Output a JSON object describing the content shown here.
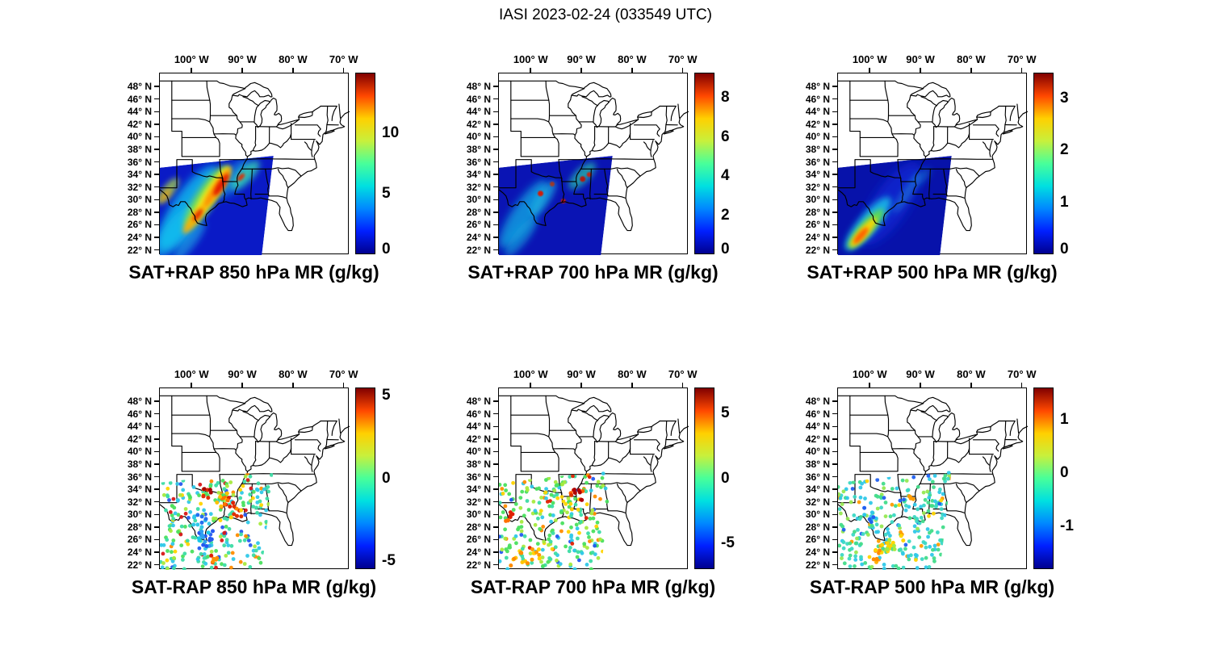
{
  "title": "IASI 2023-02-24 (033549 UTC)",
  "axes": {
    "lon_tick_labels": [
      "100° W",
      "90° W",
      "80° W",
      "70° W"
    ],
    "lat_tick_labels": [
      "48° N",
      "46° N",
      "44° N",
      "42° N",
      "40° N",
      "38° N",
      "36° N",
      "34° N",
      "32° N",
      "30° N",
      "28° N",
      "26° N",
      "24° N",
      "22° N"
    ]
  },
  "panels": [
    {
      "title": "SAT+RAP 850 hPa MR (g/kg)"
    },
    {
      "title": "SAT+RAP 700 hPa MR (g/kg)"
    },
    {
      "title": "SAT+RAP 500 hPa MR (g/kg)"
    },
    {
      "title": "SAT-RAP 850 hPa MR (g/kg)"
    },
    {
      "title": "SAT-RAP 700 hPa MR (g/kg)"
    },
    {
      "title": "SAT-RAP 500 hPa MR (g/kg)"
    }
  ],
  "chart_data": {
    "type": "heatmap",
    "layout": "2x3 grid of geographic map panels over the central/eastern United States",
    "suptitle": "IASI 2023-02-24 (033549 UTC)",
    "colormap": "jet",
    "colormap_stops": [
      "#00008f",
      "#0020ff",
      "#0088ff",
      "#00e0e0",
      "#48ff9a",
      "#c8f03c",
      "#ffd000",
      "#ff4800",
      "#800000"
    ],
    "map_extent": {
      "lon_west": -106.4,
      "lon_east": -69.0,
      "lat_south": 21.3,
      "lat_north": 50.2
    },
    "lon_ticks_deg_west": [
      100,
      90,
      80,
      70
    ],
    "lat_ticks_deg_north": [
      48,
      46,
      44,
      42,
      40,
      38,
      36,
      34,
      32,
      30,
      28,
      26,
      24,
      22
    ],
    "panels": [
      {
        "title": "SAT+RAP 850 hPa MR (g/kg)",
        "row": 0,
        "col": 0,
        "style": "filled-swath",
        "colorbar": {
          "ticks": [
            0,
            5,
            10
          ],
          "vmin": 0,
          "vmax": 15
        },
        "description": "Diagonal IASI swath over the southern US and Gulf coast; mostly 2-6 g/kg (blue-cyan) with an 8-12 g/kg (yellow-orange-red) band from south Texas through Louisiana/Mississippi."
      },
      {
        "title": "SAT+RAP 700 hPa MR (g/kg)",
        "row": 0,
        "col": 1,
        "style": "filled-swath",
        "colorbar": {
          "ticks": [
            0,
            2,
            4,
            6,
            8
          ],
          "vmin": 0,
          "vmax": 9.3
        },
        "description": "Same swath; mostly 1-3 g/kg (blue) with cyan streaks over south Texas and a few isolated red high spots near Louisiana and Mississippi."
      },
      {
        "title": "SAT+RAP 500 hPa MR (g/kg)",
        "row": 0,
        "col": 2,
        "style": "filled-swath",
        "colorbar": {
          "ticks": [
            0,
            1,
            2,
            3
          ],
          "vmin": 0,
          "vmax": 3.5
        },
        "description": "Same swath; mostly 0-0.8 g/kg (dark blue) with a 2-3 g/kg (green-yellow-orange) streak near the lower Rio Grande."
      },
      {
        "title": "SAT-RAP 850 hPa MR (g/kg)",
        "row": 1,
        "col": 0,
        "style": "scatter",
        "colorbar": {
          "ticks": [
            -5,
            0,
            5
          ],
          "vmin": -5.5,
          "vmax": 5.5
        },
        "description": "Scattered retrieval-minus-model differences mostly near 0 (green-cyan); +3 to +5 (orange-red) cluster over east Texas/Louisiana; negative (blue) points over south Texas."
      },
      {
        "title": "SAT-RAP 700 hPa MR (g/kg)",
        "row": 1,
        "col": 1,
        "style": "scatter",
        "colorbar": {
          "ticks": [
            -5,
            0,
            5
          ],
          "vmin": -7,
          "vmax": 7
        },
        "description": "Mostly near-zero (green) differences; a few +4 to +6 (red) spots over Mississippi and far west Texas; orange points in the lower-left of the swath."
      },
      {
        "title": "SAT-RAP 500 hPa MR (g/kg)",
        "row": 1,
        "col": 2,
        "style": "scatter",
        "colorbar": {
          "ticks": [
            -1,
            0,
            1
          ],
          "vmin": -1.8,
          "vmax": 1.6
        },
        "description": "Mostly near-zero (cyan-green) differences; +0.5 to +1 (yellow-orange) band in the southern part of the swath; scattered negative (blue) points over Texas."
      }
    ]
  }
}
